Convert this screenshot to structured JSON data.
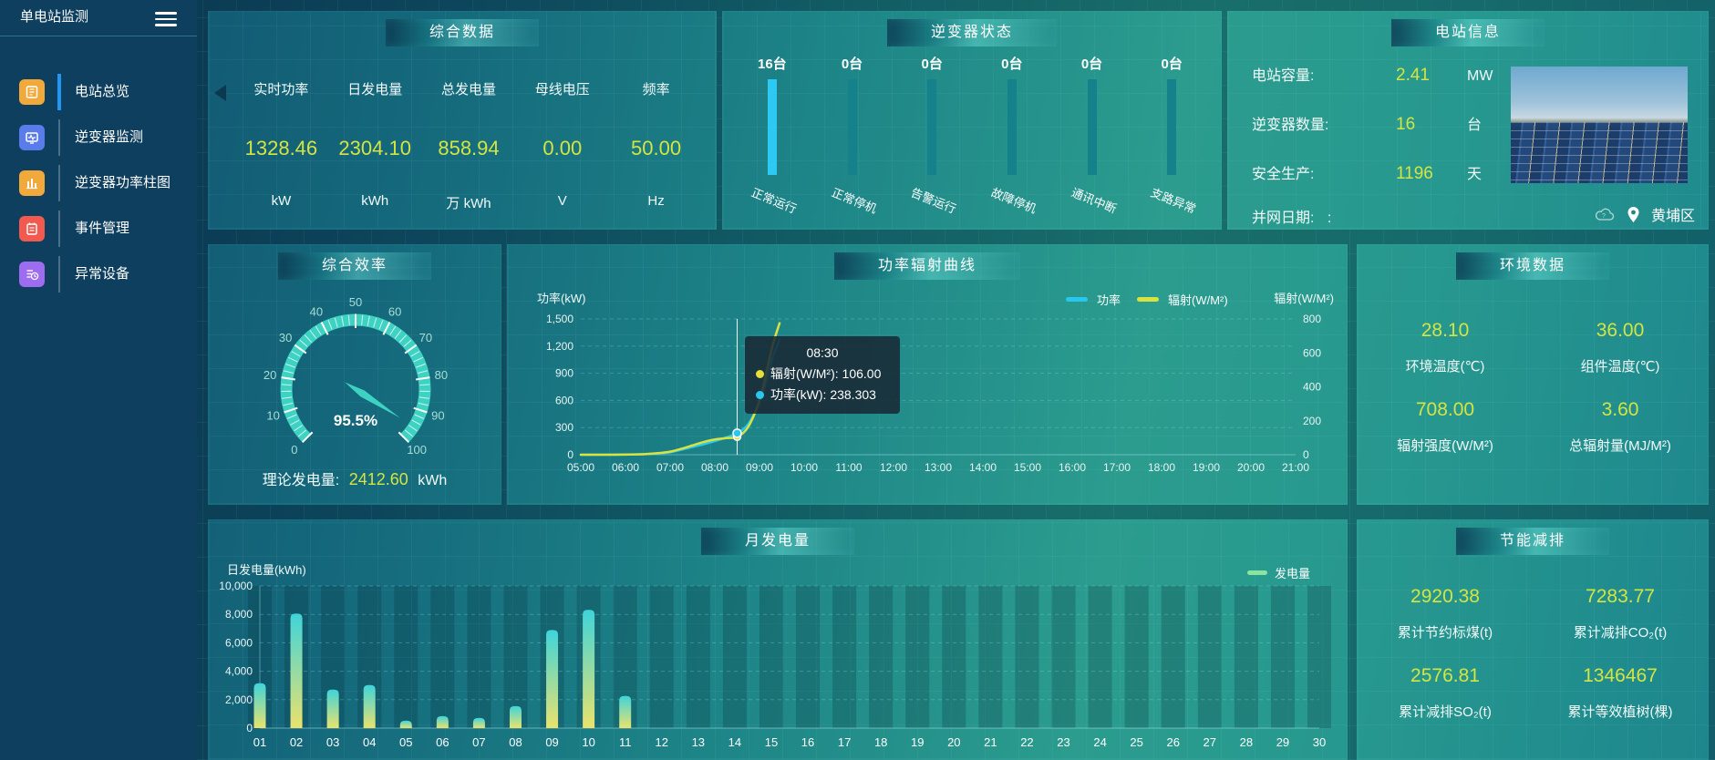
{
  "app": {
    "title": "单电站监测"
  },
  "sidebar": {
    "items": [
      {
        "label": "电站总览",
        "icon_color": "#f2a93b",
        "active": true
      },
      {
        "label": "逆变器监测",
        "icon_color": "#5a7bea",
        "active": false
      },
      {
        "label": "逆变器功率柱图",
        "icon_color": "#f2a93b",
        "active": false
      },
      {
        "label": "事件管理",
        "icon_color": "#f25a50",
        "active": false
      },
      {
        "label": "异常设备",
        "icon_color": "#9d6cf0",
        "active": false
      }
    ]
  },
  "summary": {
    "title": "综合数据",
    "metrics": [
      {
        "label": "实时功率",
        "value": "1328.46",
        "unit": "kW"
      },
      {
        "label": "日发电量",
        "value": "2304.10",
        "unit": "kWh"
      },
      {
        "label": "总发电量",
        "value": "858.94",
        "unit": "万 kWh"
      },
      {
        "label": "母线电压",
        "value": "0.00",
        "unit": "V"
      },
      {
        "label": "频率",
        "value": "50.00",
        "unit": "Hz"
      }
    ]
  },
  "inverter": {
    "title": "逆变器状态",
    "bars": [
      {
        "count": "16台",
        "label": "正常运行",
        "color": "#2ec9f2"
      },
      {
        "count": "0台",
        "label": "正常停机",
        "color": "#15818a"
      },
      {
        "count": "0台",
        "label": "告警运行",
        "color": "#15818a"
      },
      {
        "count": "0台",
        "label": "故障停机",
        "color": "#15818a"
      },
      {
        "count": "0台",
        "label": "通讯中断",
        "color": "#15818a"
      },
      {
        "count": "0台",
        "label": "支路异常",
        "color": "#15818a"
      }
    ]
  },
  "station": {
    "title": "电站信息",
    "rows": [
      {
        "label": "电站容量:",
        "value": "2.41",
        "unit": "MW"
      },
      {
        "label": "逆变器数量:",
        "value": "16",
        "unit": "台"
      },
      {
        "label": "安全生产:",
        "value": "1196",
        "unit": "天"
      }
    ],
    "grid_date_label": "并网日期:",
    "grid_date_value": ":",
    "location": "黄埔区"
  },
  "efficiency": {
    "title": "综合效率",
    "display": "95.5%",
    "theory_label": "理论发电量:",
    "theory_value": "2412.60",
    "theory_unit": "kWh"
  },
  "curve": {
    "title": "功率辐射曲线",
    "ylabel_left": "功率(kW)",
    "ylabel_right": "辐射(W/M²)",
    "legend": [
      {
        "name": "功率",
        "color": "#29c7f0"
      },
      {
        "name": "辐射(W/M²)",
        "color": "#d9e23f"
      }
    ],
    "tooltip": {
      "time": "08:30",
      "items": [
        {
          "color": "#e4df3a",
          "text": "辐射(W/M²): 106.00"
        },
        {
          "color": "#29c7f0",
          "text": "功率(kW): 238.303"
        }
      ]
    }
  },
  "environment": {
    "title": "环境数据",
    "metrics": [
      {
        "value": "28.10",
        "label": "环境温度(℃)"
      },
      {
        "value": "36.00",
        "label": "组件温度(℃)"
      },
      {
        "value": "708.00",
        "label": "辐射强度(W/M²)"
      },
      {
        "value": "3.60",
        "label": "总辐射量(MJ/M²)"
      }
    ]
  },
  "monthly": {
    "title": "月发电量",
    "ylabel": "日发电量(kWh)",
    "legend": "发电量",
    "legend_color": "#8ae4a1"
  },
  "savings": {
    "title": "节能减排",
    "metrics": [
      {
        "value": "2920.38",
        "label": "累计节约标煤(t)"
      },
      {
        "value": "7283.77",
        "label": "累计减排CO₂(t)"
      },
      {
        "value": "2576.81",
        "label": "累计减排SO₂(t)"
      },
      {
        "value": "1346467",
        "label": "累计等效植树(棵)"
      }
    ]
  },
  "chart_data": [
    {
      "id": "efficiency_gauge",
      "type": "gauge",
      "title": "综合效率",
      "min": 0,
      "max": 100,
      "value": 95.5,
      "unit": "%",
      "tick_labels": [
        0,
        10,
        20,
        30,
        40,
        50,
        60,
        70,
        80,
        90,
        100
      ],
      "color": "#3ed2c2"
    },
    {
      "id": "power_radiation",
      "type": "line",
      "title": "功率辐射曲线",
      "x_ticks": [
        "05:00",
        "06:00",
        "07:00",
        "08:00",
        "09:00",
        "10:00",
        "11:00",
        "12:00",
        "13:00",
        "14:00",
        "15:00",
        "16:00",
        "17:00",
        "18:00",
        "19:00",
        "20:00",
        "21:00"
      ],
      "x_range": [
        5,
        21
      ],
      "left_axis": {
        "label": "功率(kW)",
        "ticks": [
          0,
          300,
          600,
          900,
          1200,
          1500
        ],
        "max": 1500
      },
      "right_axis": {
        "label": "辐射(W/M²)",
        "ticks": [
          0,
          200,
          400,
          600,
          800
        ],
        "max": 800
      },
      "series": [
        {
          "name": "功率",
          "color": "#29c7f0",
          "axis": "left",
          "points": [
            [
              5,
              0
            ],
            [
              5.25,
              0
            ],
            [
              5.5,
              0
            ],
            [
              5.75,
              1
            ],
            [
              6,
              2
            ],
            [
              6.25,
              4
            ],
            [
              6.5,
              8
            ],
            [
              6.75,
              15
            ],
            [
              7,
              28
            ],
            [
              7.25,
              55
            ],
            [
              7.5,
              85
            ],
            [
              7.75,
              115
            ],
            [
              8,
              150
            ],
            [
              8.25,
              190
            ],
            [
              8.5,
              238.3
            ],
            [
              8.75,
              340
            ],
            [
              9,
              580
            ],
            [
              9.15,
              800
            ],
            [
              9.3,
              1080
            ],
            [
              9.45,
              1270
            ]
          ]
        },
        {
          "name": "辐射(W/M²)",
          "color": "#d9e23f",
          "axis": "right",
          "points": [
            [
              5,
              0
            ],
            [
              5.25,
              0
            ],
            [
              5.5,
              0
            ],
            [
              5.75,
              0
            ],
            [
              6,
              1
            ],
            [
              6.25,
              2
            ],
            [
              6.5,
              5
            ],
            [
              6.75,
              10
            ],
            [
              7,
              18
            ],
            [
              7.25,
              35
            ],
            [
              7.5,
              55
            ],
            [
              7.75,
              75
            ],
            [
              8,
              90
            ],
            [
              8.25,
              98
            ],
            [
              8.5,
              106
            ],
            [
              8.75,
              165
            ],
            [
              9,
              320
            ],
            [
              9.15,
              480
            ],
            [
              9.3,
              650
            ],
            [
              9.45,
              775
            ]
          ]
        }
      ],
      "pointer": {
        "x": 8.5,
        "power": 238.303,
        "radiation": 106.0
      }
    },
    {
      "id": "monthly_generation",
      "type": "bar",
      "title": "月发电量",
      "ylabel": "日发电量(kWh)",
      "legend": "发电量",
      "categories": [
        "01",
        "02",
        "03",
        "04",
        "05",
        "06",
        "07",
        "08",
        "09",
        "10",
        "11",
        "12",
        "13",
        "14",
        "15",
        "16",
        "17",
        "18",
        "19",
        "20",
        "21",
        "22",
        "23",
        "24",
        "25",
        "26",
        "27",
        "28",
        "29",
        "30"
      ],
      "values": [
        3160,
        8050,
        2710,
        3030,
        520,
        840,
        710,
        1550,
        6900,
        8320,
        2260,
        0,
        0,
        0,
        0,
        0,
        0,
        0,
        0,
        0,
        0,
        0,
        0,
        0,
        0,
        0,
        0,
        0,
        0,
        0
      ],
      "ylim": [
        0,
        10000
      ],
      "yticks": [
        0,
        2000,
        4000,
        6000,
        8000,
        10000
      ],
      "bar_gradient": [
        "#3fd4da",
        "#eae26d"
      ]
    }
  ]
}
